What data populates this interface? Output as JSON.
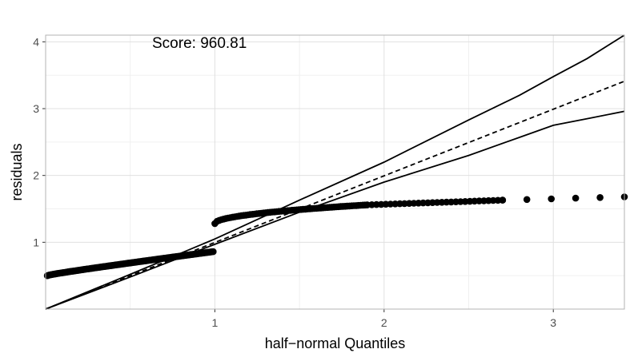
{
  "chart_data": {
    "type": "scatter",
    "title": "",
    "xlabel": "half−normal Quantiles",
    "ylabel": "residuals",
    "annotation": "Score: 960.81",
    "xlim": [
      0,
      3.42
    ],
    "ylim": [
      0,
      4.1
    ],
    "x_ticks": [
      1,
      2,
      3
    ],
    "y_ticks": [
      1,
      2,
      3,
      4
    ],
    "grid": true,
    "legend": "none",
    "colors": {
      "points": "#000000",
      "grid": "#e0e0e0",
      "panel_border": "#b3b3b3"
    },
    "points_segments": [
      {
        "x_start": 0.01,
        "x_end": 0.99,
        "y_start": 0.5,
        "y_end": 0.86,
        "n": 160
      },
      {
        "x_start": 1.0,
        "x_end": 1.9,
        "y_start": 1.28,
        "y_end": 1.56,
        "n": 70
      },
      {
        "x_start": 1.9,
        "x_end": 2.7,
        "y_start": 1.56,
        "y_end": 1.63,
        "n": 30
      },
      {
        "x_start": 2.7,
        "x_end": 3.42,
        "y_start": 1.63,
        "y_end": 1.68,
        "n": 6
      }
    ],
    "series": [
      {
        "style": "dashed",
        "x": [
          0,
          3.42
        ],
        "y": [
          0,
          3.41
        ]
      },
      {
        "style": "solid",
        "x": [
          0,
          0.5,
          1.0,
          1.5,
          2.0,
          2.5,
          2.8,
          3.0,
          3.2,
          3.42
        ],
        "y": [
          0,
          0.52,
          1.05,
          1.63,
          2.2,
          2.83,
          3.2,
          3.48,
          3.75,
          4.1
        ]
      },
      {
        "style": "solid",
        "x": [
          0,
          0.5,
          1.0,
          1.5,
          2.0,
          2.5,
          2.8,
          3.0,
          3.2,
          3.42
        ],
        "y": [
          0,
          0.48,
          0.97,
          1.45,
          1.9,
          2.3,
          2.57,
          2.75,
          2.85,
          2.96
        ]
      }
    ]
  }
}
